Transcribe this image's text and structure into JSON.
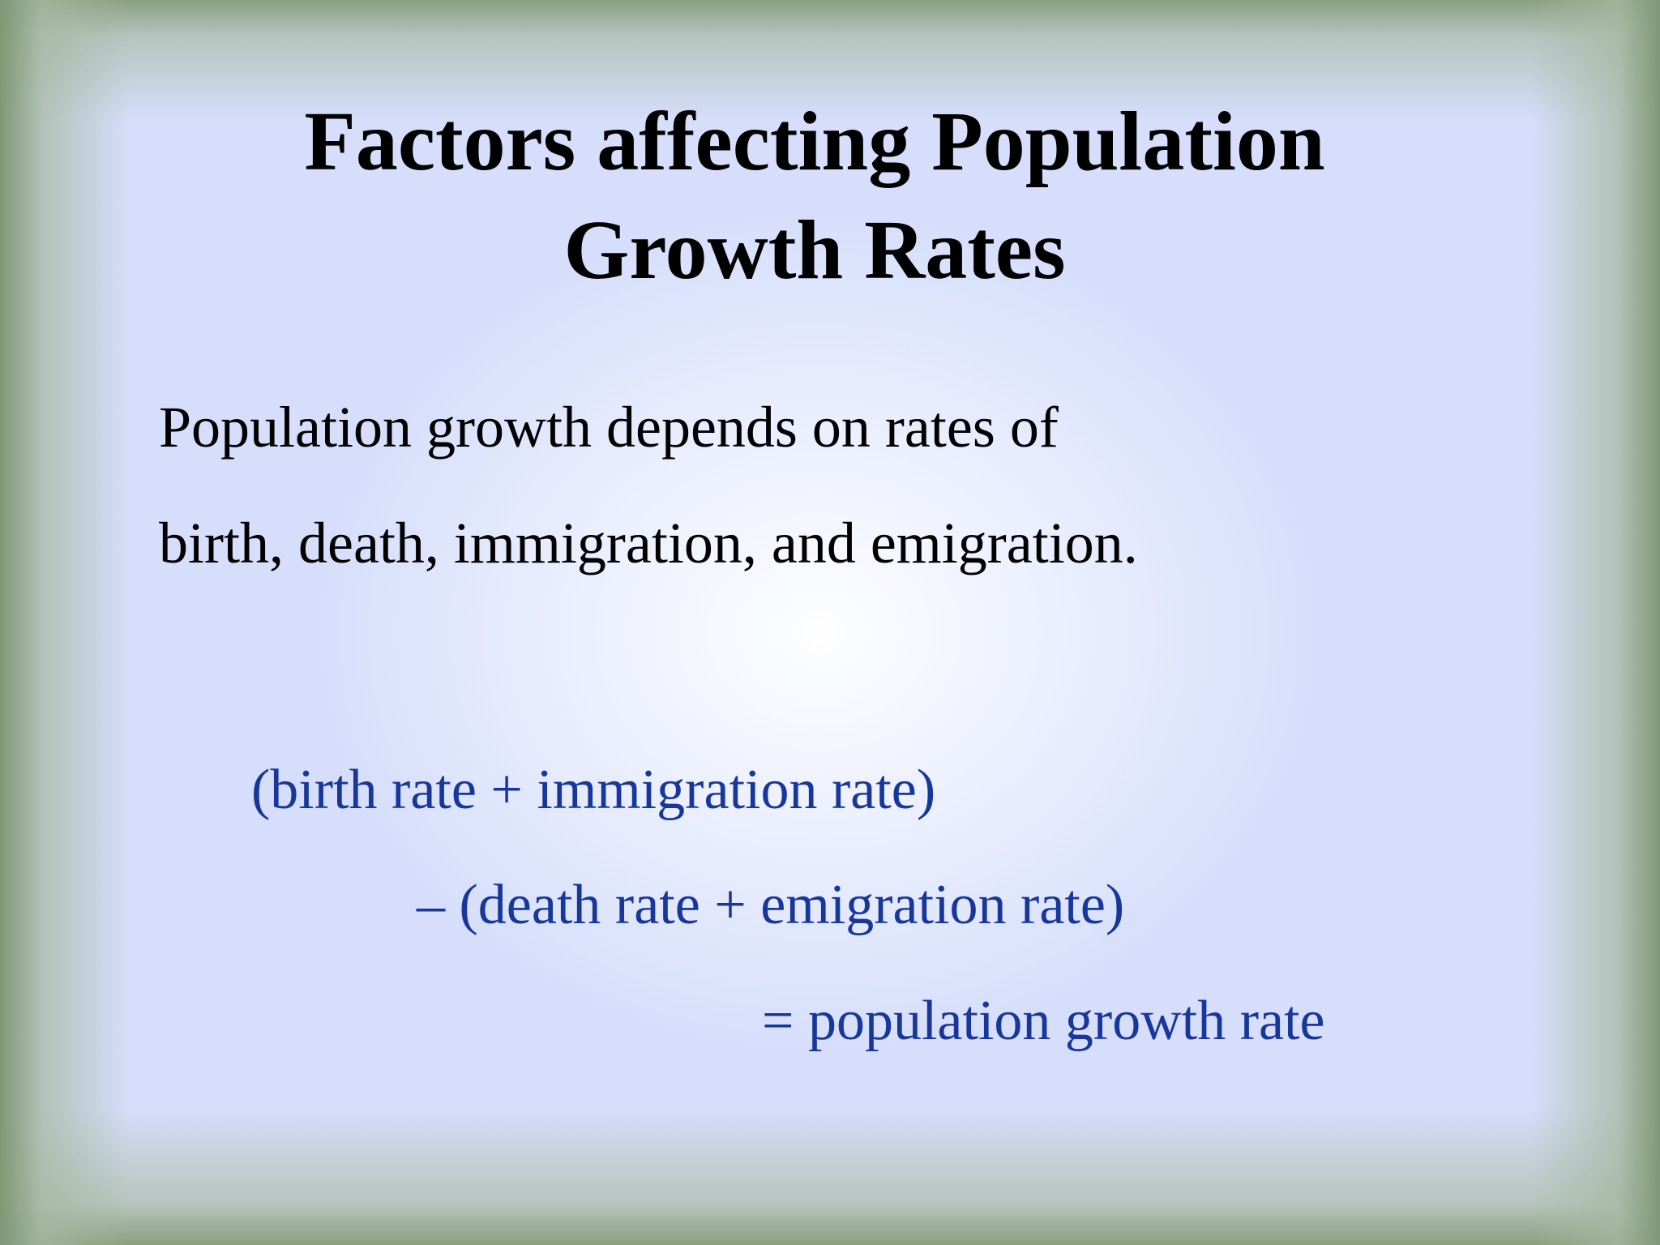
{
  "slide": {
    "title_line1": "Factors affecting Population",
    "title_line2": "Growth Rates",
    "body_line1": "Population growth depends on rates of",
    "body_line2": "birth, death, immigration, and emigration.",
    "formula_line1": "(birth rate + immigration rate)",
    "formula_line2": "– (death rate + emigration rate)",
    "formula_line3": "=  population growth rate"
  },
  "colors": {
    "background": "#d6defb",
    "frame": "#8fa58b",
    "title_text": "#000000",
    "formula_text": "#17379b"
  }
}
